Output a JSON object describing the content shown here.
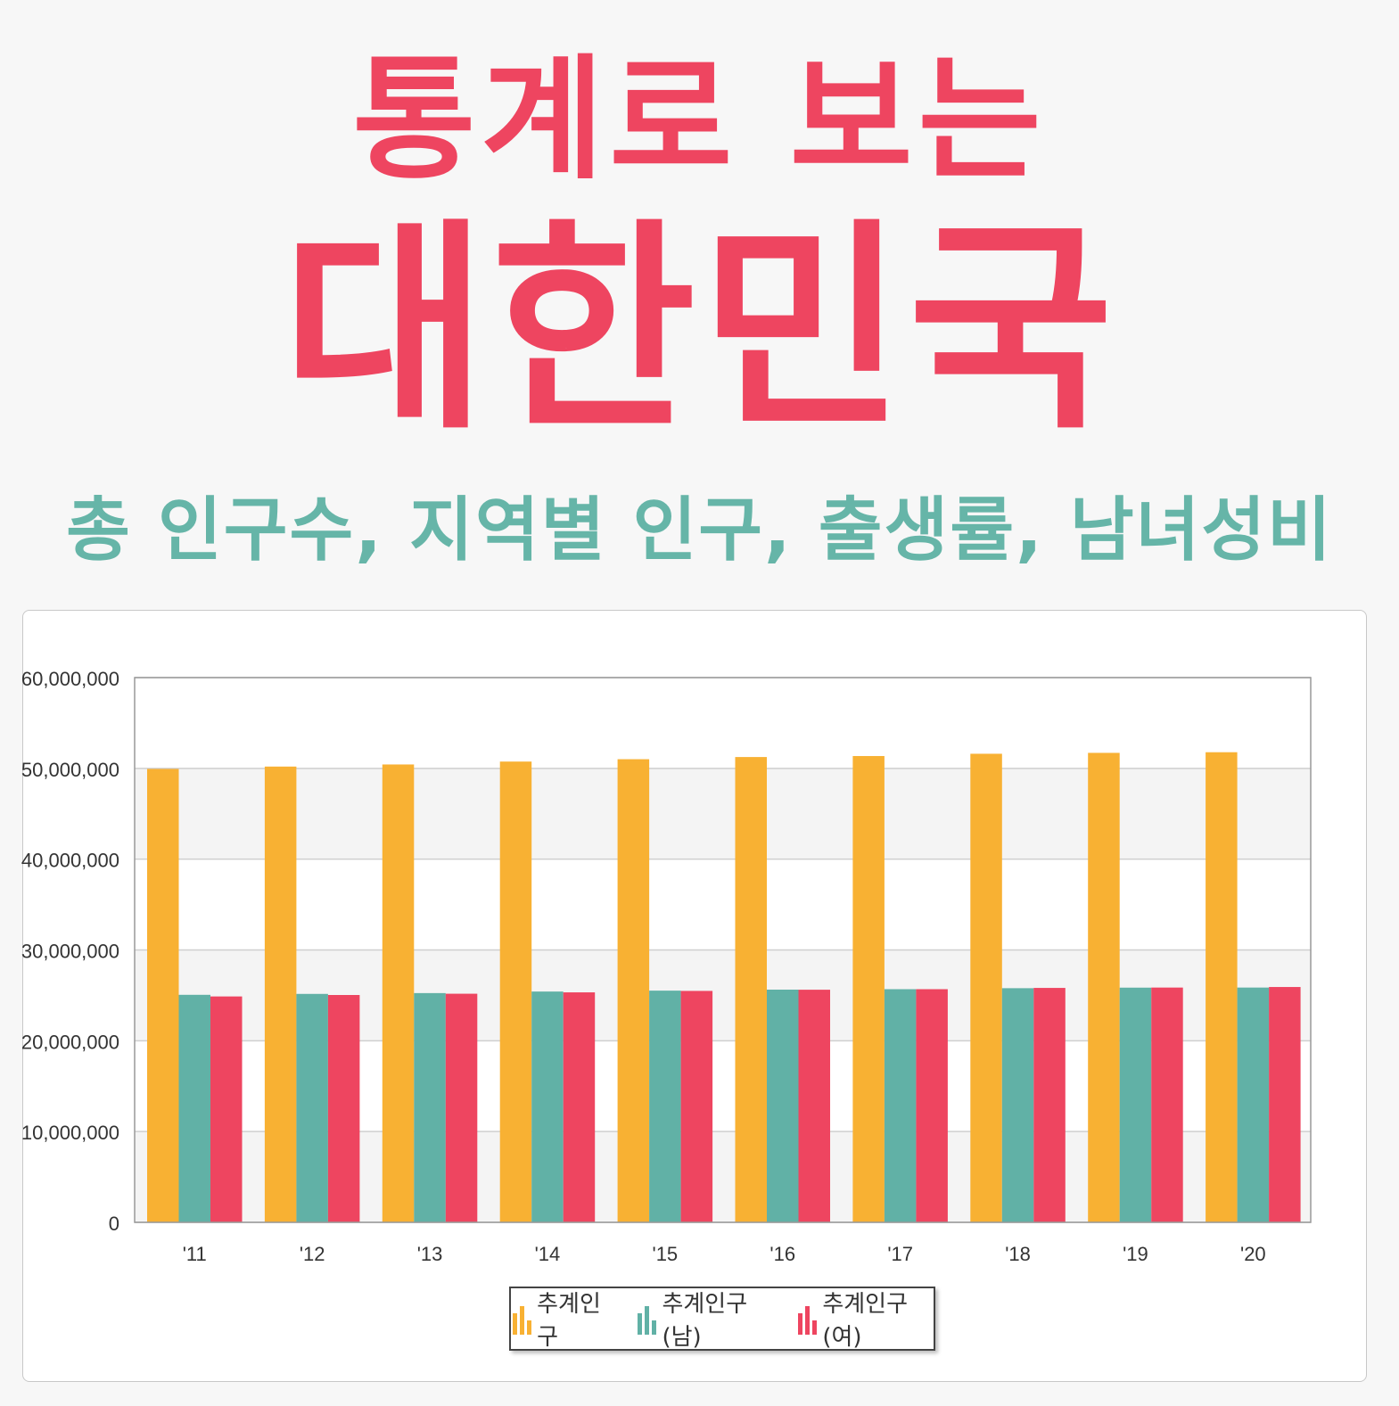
{
  "header": {
    "title_line1": "통계로 보는",
    "title_line2": "대한민국",
    "subtitle": "총 인구수, 지역별 인구, 출생률, 남녀성비",
    "title_color": "#ee4560",
    "subtitle_color": "#66b5a8"
  },
  "chart_data": {
    "type": "bar",
    "categories": [
      "'11",
      "'12",
      "'13",
      "'14",
      "'15",
      "'16",
      "'17",
      "'18",
      "'19",
      "'20"
    ],
    "series": [
      {
        "name": "추계인구",
        "color": "#f8b133",
        "values": [
          49940000,
          50200000,
          50430000,
          50750000,
          51010000,
          51250000,
          51360000,
          51610000,
          51710000,
          51780000
        ]
      },
      {
        "name": "추계인구(남)",
        "color": "#61b1a6",
        "values": [
          25060000,
          25160000,
          25250000,
          25420000,
          25520000,
          25630000,
          25680000,
          25790000,
          25850000,
          25860000
        ]
      },
      {
        "name": "추계인구(여)",
        "color": "#ee4560",
        "values": [
          24880000,
          25040000,
          25180000,
          25330000,
          25490000,
          25620000,
          25680000,
          25820000,
          25860000,
          25920000
        ]
      }
    ],
    "yticks": [
      "0",
      "10,000,000",
      "20,000,000",
      "30,000,000",
      "40,000,000",
      "50,000,000",
      "60,000,000"
    ],
    "ylim": [
      0,
      60000000
    ],
    "grid": true,
    "legend": "bottom-center"
  }
}
